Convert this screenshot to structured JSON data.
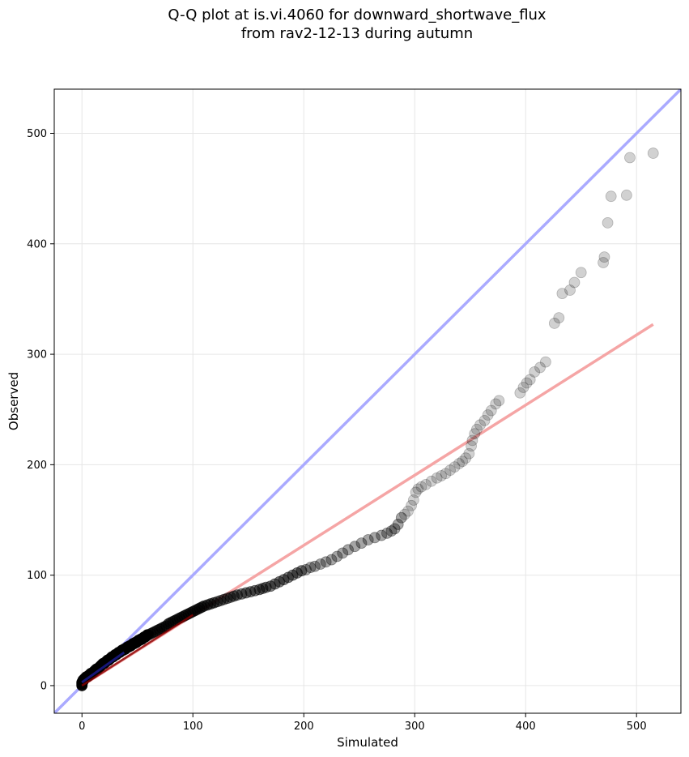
{
  "chart_data": {
    "type": "scatter",
    "title_line1": "Q-Q plot at is.vi.4060 for downward_shortwave_flux",
    "title_line2": "from rav2-12-13 during autumn",
    "xlabel": "Simulated",
    "ylabel": "Observed",
    "xlim": [
      -25,
      540
    ],
    "ylim": [
      -25,
      540
    ],
    "xticks": [
      0,
      100,
      200,
      300,
      400,
      500
    ],
    "yticks": [
      0,
      100,
      200,
      300,
      400,
      500
    ],
    "grid": true,
    "identity_line": {
      "color": "#aaaaff",
      "from": [
        -25,
        -25
      ],
      "to": [
        540,
        540
      ]
    },
    "fit_line": {
      "color": "#f5a5a5",
      "from": [
        0,
        0
      ],
      "to": [
        515,
        327
      ]
    },
    "inner_dark_line": {
      "color": "#8b0000",
      "from": [
        0,
        0
      ],
      "to": [
        100,
        64
      ]
    },
    "inner_blue_segment": {
      "color": "#1a1a8c",
      "from": [
        0,
        3
      ],
      "to": [
        38,
        30
      ]
    },
    "points": [
      [
        0,
        0
      ],
      [
        0,
        1
      ],
      [
        0,
        2
      ],
      [
        0,
        3
      ],
      [
        1,
        4
      ],
      [
        1,
        5
      ],
      [
        2,
        6
      ],
      [
        3,
        7
      ],
      [
        4,
        8
      ],
      [
        5,
        8
      ],
      [
        6,
        9
      ],
      [
        7,
        10
      ],
      [
        8,
        11
      ],
      [
        9,
        11
      ],
      [
        10,
        12
      ],
      [
        11,
        13
      ],
      [
        12,
        14
      ],
      [
        13,
        15
      ],
      [
        14,
        15
      ],
      [
        15,
        16
      ],
      [
        16,
        17
      ],
      [
        17,
        18
      ],
      [
        18,
        19
      ],
      [
        19,
        20
      ],
      [
        20,
        20
      ],
      [
        21,
        21
      ],
      [
        22,
        22
      ],
      [
        23,
        23
      ],
      [
        24,
        23
      ],
      [
        25,
        24
      ],
      [
        26,
        25
      ],
      [
        27,
        26
      ],
      [
        28,
        26
      ],
      [
        29,
        27
      ],
      [
        30,
        28
      ],
      [
        31,
        28
      ],
      [
        32,
        29
      ],
      [
        33,
        30
      ],
      [
        34,
        30
      ],
      [
        35,
        31
      ],
      [
        36,
        32
      ],
      [
        37,
        32
      ],
      [
        38,
        33
      ],
      [
        39,
        33
      ],
      [
        40,
        34
      ],
      [
        41,
        35
      ],
      [
        42,
        35
      ],
      [
        43,
        36
      ],
      [
        44,
        36
      ],
      [
        45,
        37
      ],
      [
        46,
        38
      ],
      [
        47,
        38
      ],
      [
        48,
        39
      ],
      [
        49,
        39
      ],
      [
        50,
        40
      ],
      [
        51,
        41
      ],
      [
        52,
        41
      ],
      [
        53,
        42
      ],
      [
        54,
        42
      ],
      [
        55,
        43
      ],
      [
        56,
        44
      ],
      [
        57,
        44
      ],
      [
        58,
        45
      ],
      [
        59,
        46
      ],
      [
        60,
        46
      ],
      [
        62,
        47
      ],
      [
        64,
        48
      ],
      [
        66,
        49
      ],
      [
        68,
        50
      ],
      [
        70,
        51
      ],
      [
        72,
        52
      ],
      [
        74,
        53
      ],
      [
        76,
        54
      ],
      [
        78,
        56
      ],
      [
        80,
        57
      ],
      [
        82,
        58
      ],
      [
        84,
        59
      ],
      [
        86,
        60
      ],
      [
        88,
        61
      ],
      [
        90,
        62
      ],
      [
        92,
        63
      ],
      [
        94,
        64
      ],
      [
        96,
        65
      ],
      [
        98,
        66
      ],
      [
        100,
        67
      ],
      [
        102,
        68
      ],
      [
        104,
        69
      ],
      [
        106,
        70
      ],
      [
        108,
        71
      ],
      [
        110,
        72
      ],
      [
        113,
        73
      ],
      [
        116,
        74
      ],
      [
        119,
        75
      ],
      [
        122,
        76
      ],
      [
        125,
        77
      ],
      [
        128,
        78
      ],
      [
        131,
        79
      ],
      [
        134,
        80
      ],
      [
        137,
        81
      ],
      [
        140,
        82
      ],
      [
        144,
        83
      ],
      [
        148,
        84
      ],
      [
        152,
        85
      ],
      [
        156,
        86
      ],
      [
        160,
        87
      ],
      [
        163,
        88
      ],
      [
        166,
        89
      ],
      [
        170,
        90
      ],
      [
        174,
        92
      ],
      [
        178,
        94
      ],
      [
        182,
        96
      ],
      [
        186,
        98
      ],
      [
        190,
        100
      ],
      [
        194,
        102
      ],
      [
        198,
        104
      ],
      [
        202,
        105
      ],
      [
        206,
        107
      ],
      [
        210,
        108
      ],
      [
        215,
        110
      ],
      [
        220,
        112
      ],
      [
        225,
        114
      ],
      [
        230,
        117
      ],
      [
        235,
        120
      ],
      [
        240,
        123
      ],
      [
        246,
        126
      ],
      [
        252,
        129
      ],
      [
        258,
        132
      ],
      [
        264,
        134
      ],
      [
        270,
        136
      ],
      [
        275,
        138
      ],
      [
        279,
        140
      ],
      [
        282,
        142
      ],
      [
        285,
        146
      ],
      [
        288,
        152
      ],
      [
        291,
        155
      ],
      [
        294,
        158
      ],
      [
        297,
        163
      ],
      [
        299,
        168
      ],
      [
        301,
        175
      ],
      [
        303,
        178
      ],
      [
        306,
        180
      ],
      [
        310,
        182
      ],
      [
        315,
        185
      ],
      [
        320,
        188
      ],
      [
        324,
        190
      ],
      [
        328,
        192
      ],
      [
        332,
        195
      ],
      [
        336,
        198
      ],
      [
        340,
        201
      ],
      [
        343,
        203
      ],
      [
        346,
        206
      ],
      [
        349,
        210
      ],
      [
        351,
        217
      ],
      [
        352,
        222
      ],
      [
        354,
        228
      ],
      [
        356,
        232
      ],
      [
        359,
        236
      ],
      [
        363,
        240
      ],
      [
        366,
        245
      ],
      [
        369,
        249
      ],
      [
        373,
        255
      ],
      [
        376,
        258
      ],
      [
        395,
        265
      ],
      [
        398,
        270
      ],
      [
        401,
        274
      ],
      [
        404,
        277
      ],
      [
        408,
        284
      ],
      [
        413,
        288
      ],
      [
        418,
        293
      ],
      [
        426,
        328
      ],
      [
        430,
        333
      ],
      [
        433,
        355
      ],
      [
        440,
        358
      ],
      [
        444,
        365
      ],
      [
        450,
        374
      ],
      [
        470,
        383
      ],
      [
        471,
        388
      ],
      [
        474,
        419
      ],
      [
        477,
        443
      ],
      [
        491,
        444
      ],
      [
        494,
        478
      ],
      [
        515,
        482
      ]
    ]
  }
}
